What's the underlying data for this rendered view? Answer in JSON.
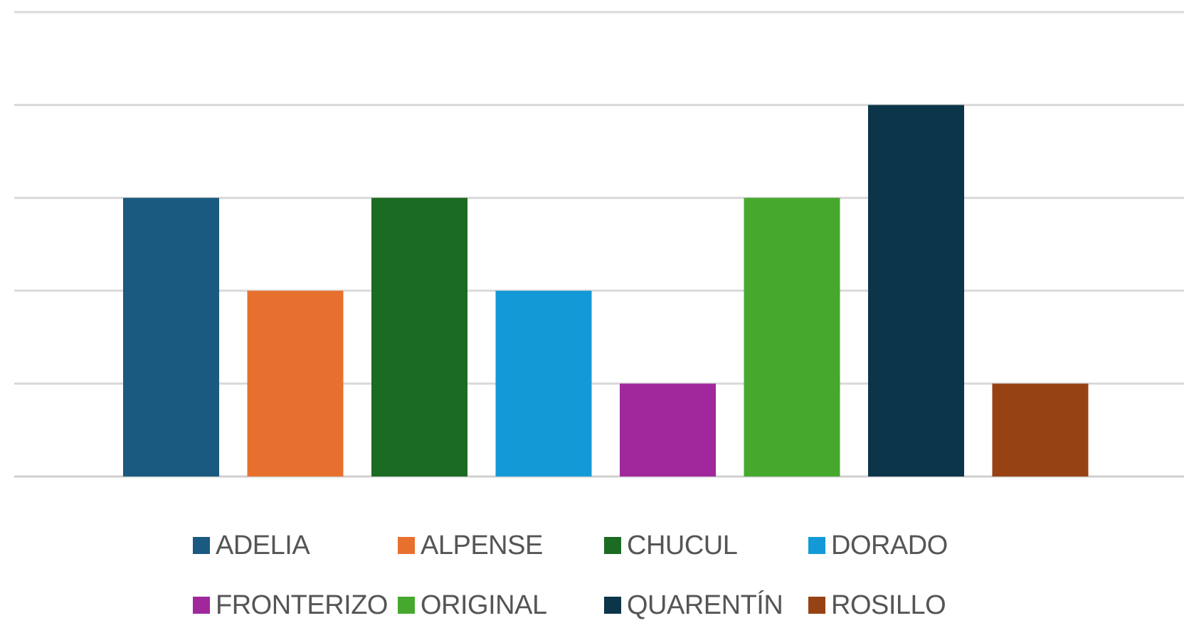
{
  "chart_data": {
    "type": "bar",
    "ylim": [
      0,
      5
    ],
    "grid": true,
    "legend_position": "bottom",
    "series": [
      {
        "name": "ADELIA",
        "value": 3,
        "color": "#1a5a80"
      },
      {
        "name": "ALPENSE",
        "value": 2,
        "color": "#e8702e"
      },
      {
        "name": "CHUCUL",
        "value": 3,
        "color": "#1b6b22"
      },
      {
        "name": "DORADO",
        "value": 2,
        "color": "#139ad6"
      },
      {
        "name": "FRONTERIZO",
        "value": 1,
        "color": "#a0289c"
      },
      {
        "name": "ORIGINAL",
        "value": 3,
        "color": "#46a92e"
      },
      {
        "name": "QUARENTÍN",
        "value": 4,
        "color": "#0c354a"
      },
      {
        "name": "ROSILLO",
        "value": 1,
        "color": "#974214"
      }
    ]
  }
}
